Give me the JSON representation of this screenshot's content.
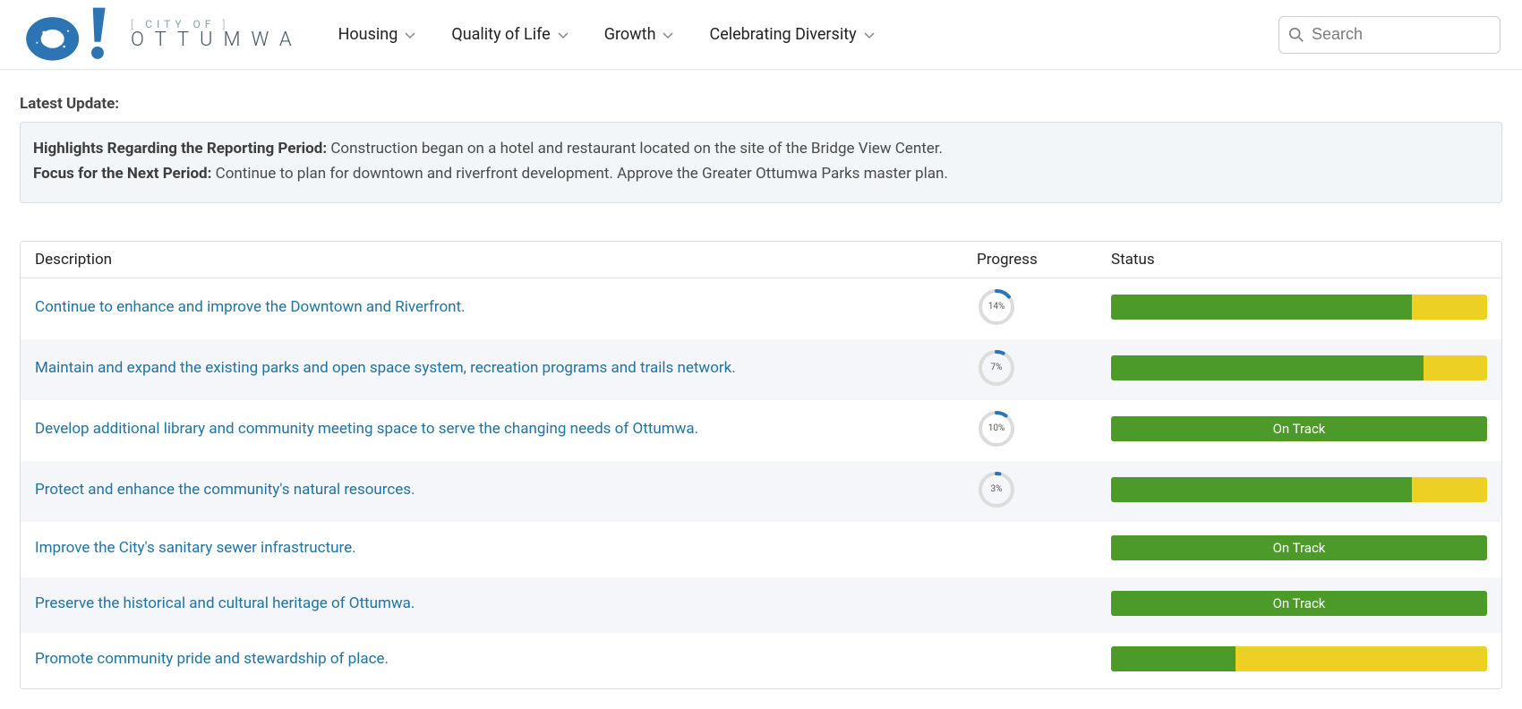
{
  "header": {
    "logo_top_prefix": "[ ",
    "logo_top_text": "CITY OF",
    "logo_top_suffix": " ]",
    "logo_main": "OTTUMWA",
    "nav": [
      {
        "label": "Housing"
      },
      {
        "label": "Quality of Life"
      },
      {
        "label": "Growth"
      },
      {
        "label": "Celebrating Diversity"
      }
    ],
    "search_placeholder": "Search"
  },
  "latest_update_label": "Latest Update:",
  "update_box": {
    "highlights_label": "Highlights Regarding the Reporting Period:",
    "highlights_text": "Construction began on a hotel and restaurant located on the site of the Bridge View Center.",
    "focus_label": "Focus for the Next Period:",
    "focus_text": "Continue to plan for downtown and riverfront development.  Approve the Greater Ottumwa Parks master plan."
  },
  "table": {
    "columns": {
      "description": "Description",
      "progress": "Progress",
      "status": "Status"
    },
    "status_colors": {
      "green": "#4c9a2a",
      "yellow": "#ecd024"
    },
    "ring_color": "#2d74b5",
    "ring_bg": "#dcdcdc",
    "rows": [
      {
        "description": "Continue to enhance and improve the Downtown and Riverfront.",
        "progress_pct": 14,
        "status_green_pct": 80,
        "status_label": ""
      },
      {
        "description": "Maintain and expand the existing parks and open space system, recreation programs and trails network.",
        "progress_pct": 7,
        "status_green_pct": 83,
        "status_label": ""
      },
      {
        "description": "Develop additional library and community meeting space to serve the changing needs of Ottumwa.",
        "progress_pct": 10,
        "status_green_pct": 100,
        "status_label": "On Track"
      },
      {
        "description": "Protect and enhance the community's natural resources.",
        "progress_pct": 3,
        "status_green_pct": 80,
        "status_label": ""
      },
      {
        "description": "Improve the City's sanitary sewer infrastructure.",
        "progress_pct": null,
        "status_green_pct": 100,
        "status_label": "On Track"
      },
      {
        "description": "Preserve the historical and cultural heritage of Ottumwa.",
        "progress_pct": null,
        "status_green_pct": 100,
        "status_label": "On Track"
      },
      {
        "description": "Promote community pride and stewardship of place.",
        "progress_pct": null,
        "status_green_pct": 33,
        "status_label": ""
      }
    ]
  },
  "colors": {
    "logo_blue": "#2d74b5",
    "link": "#1f73a3"
  }
}
